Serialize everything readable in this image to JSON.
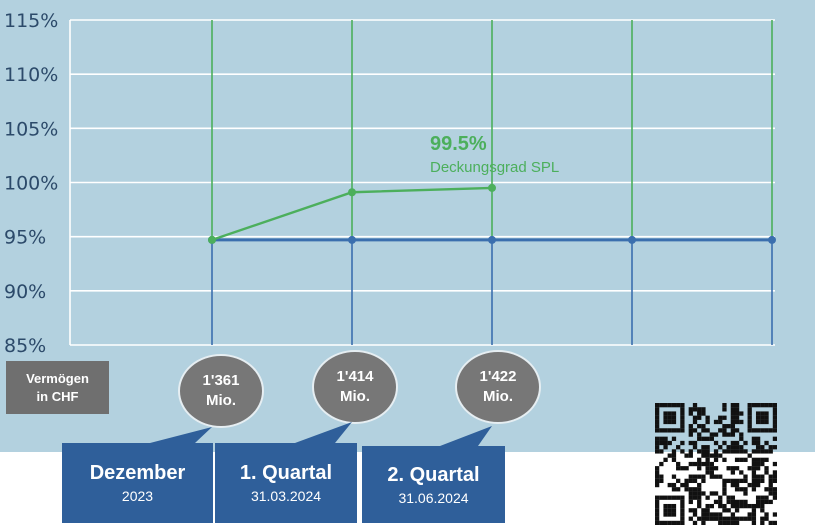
{
  "chart_data": {
    "type": "line",
    "y_ticks": [
      "115%",
      "110%",
      "105%",
      "100%",
      "95%",
      "90%",
      "85%"
    ],
    "ylim": [
      85,
      115
    ],
    "grid": true,
    "x_count": 5,
    "series": [
      {
        "name": "Deckungsgrad SPL",
        "color": "#4caf5c",
        "values": [
          94.7,
          99.1,
          99.5
        ]
      },
      {
        "color": "#3b6fae",
        "values": [
          94.7,
          94.7,
          94.7,
          94.7,
          94.7
        ]
      }
    ],
    "annotation": {
      "value": "99.5%",
      "label": "Deckungsgrad SPL"
    }
  },
  "asset_label": [
    "Vermögen",
    "in CHF"
  ],
  "assets": [
    {
      "amount": "1'361",
      "unit": "Mio."
    },
    {
      "amount": "1'414",
      "unit": "Mio."
    },
    {
      "amount": "1'422",
      "unit": "Mio."
    }
  ],
  "periods": [
    {
      "title": "Dezember",
      "sub": "2023"
    },
    {
      "title": "1. Quartal",
      "sub": "31.03.2024"
    },
    {
      "title": "2. Quartal",
      "sub": "31.06.2024"
    }
  ],
  "colors": {
    "background": "#b3d1df",
    "green": "#4caf5c",
    "blue": "#3b6fae",
    "box": "#2f5f9a",
    "bubble": "#777777"
  },
  "qr_icon": "qr-code-icon"
}
